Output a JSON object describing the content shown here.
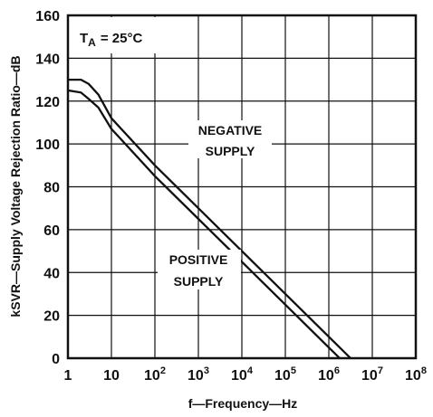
{
  "chart_data": {
    "type": "line",
    "x_scale": "log",
    "xlim": [
      1,
      100000000
    ],
    "ylim": [
      0,
      160
    ],
    "grid": true,
    "xlabel": "f—Frequency—Hz",
    "ylabel": "kSVR—Supply Voltage Rejection Ratio—dB",
    "x_ticks": [
      {
        "base": "1",
        "exp": ""
      },
      {
        "base": "10",
        "exp": ""
      },
      {
        "base": "10",
        "exp": "2"
      },
      {
        "base": "10",
        "exp": "3"
      },
      {
        "base": "10",
        "exp": "4"
      },
      {
        "base": "10",
        "exp": "5"
      },
      {
        "base": "10",
        "exp": "6"
      },
      {
        "base": "10",
        "exp": "7"
      },
      {
        "base": "10",
        "exp": "8"
      }
    ],
    "y_ticks": [
      "0",
      "20",
      "40",
      "60",
      "80",
      "100",
      "120",
      "140",
      "160"
    ],
    "annotation": {
      "t_label": "T",
      "t_sub": "A",
      "t_value": "= 25°C"
    },
    "series": [
      {
        "name": "NEGATIVE SUPPLY",
        "label_lines": [
          "NEGATIVE",
          "SUPPLY"
        ],
        "x": [
          1,
          2,
          3,
          5,
          10,
          100,
          1000,
          10000,
          100000,
          1000000,
          10000000
        ],
        "y": [
          130,
          130,
          128,
          123,
          112,
          90,
          70,
          50,
          30,
          10,
          -10
        ]
      },
      {
        "name": "POSITIVE SUPPLY",
        "label_lines": [
          "POSITIVE",
          "SUPPLY"
        ],
        "x": [
          1,
          2,
          3,
          5,
          10,
          100,
          1000,
          10000,
          100000,
          1000000,
          4000000
        ],
        "y": [
          125,
          124,
          121,
          117,
          107,
          85,
          65,
          45,
          25,
          5,
          -7
        ]
      }
    ]
  }
}
